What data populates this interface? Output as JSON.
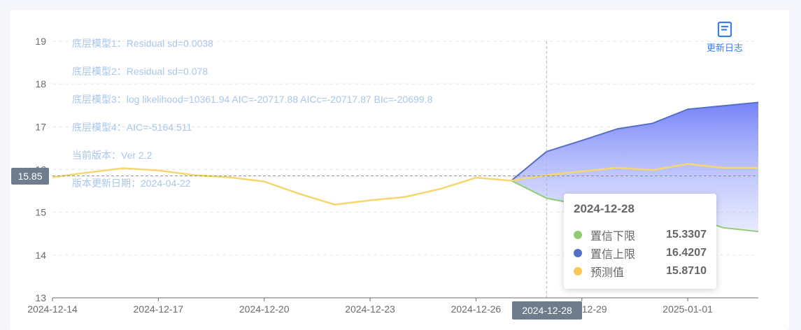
{
  "annotations": [
    "底层模型1：Residual sd=0.0038",
    "底层模型2：Residual sd=0.078",
    "底层模型3：log likelihood=10361.94 AIC=-20717.88 AICc=-20717.87 BIc=-20699.8",
    "底层模型4：AIC=-5164.511",
    "当前版本：Ver 2.2",
    "版本更新日期：2024-04-22"
  ],
  "changelog": {
    "label": "更新日志",
    "icon": "document-icon"
  },
  "crosshair": {
    "y_label": "15.85",
    "x_label": "2024-12-28"
  },
  "tooltip": {
    "title": "2024-12-28",
    "rows": [
      {
        "name": "置信下限",
        "value": "15.3307",
        "color": "#91cc75"
      },
      {
        "name": "置信上限",
        "value": "16.4207",
        "color": "#5470c6"
      },
      {
        "name": "预测值",
        "value": "15.8710",
        "color": "#fac858"
      }
    ]
  },
  "chart_data": {
    "type": "line",
    "x": [
      "2024-12-14",
      "2024-12-15",
      "2024-12-16",
      "2024-12-17",
      "2024-12-18",
      "2024-12-19",
      "2024-12-20",
      "2024-12-21",
      "2024-12-22",
      "2024-12-23",
      "2024-12-24",
      "2024-12-25",
      "2024-12-26",
      "2024-12-27",
      "2024-12-28",
      "2024-12-29",
      "2024-12-30",
      "2024-12-31",
      "2025-01-01",
      "2025-01-02",
      "2025-01-03"
    ],
    "x_tick_labels": [
      "2024-12-14",
      "2024-12-17",
      "2024-12-20",
      "2024-12-23",
      "2024-12-26",
      "2024-12-29",
      "2025-01-01"
    ],
    "ylim": [
      13,
      19
    ],
    "y_ticks": [
      13,
      14,
      15,
      16,
      17,
      18,
      19
    ],
    "grid": true,
    "series": [
      {
        "name": "预测值",
        "color": "#f5d76e",
        "values": [
          15.82,
          15.93,
          16.03,
          15.98,
          15.87,
          15.82,
          15.72,
          15.43,
          15.18,
          15.28,
          15.36,
          15.55,
          15.81,
          15.74,
          15.87,
          15.96,
          16.04,
          15.99,
          16.13,
          16.04,
          16.04
        ]
      },
      {
        "name": "置信上限",
        "color": "#5470c6",
        "values": [
          null,
          null,
          null,
          null,
          null,
          null,
          null,
          null,
          null,
          null,
          null,
          null,
          null,
          15.74,
          16.42,
          16.68,
          16.95,
          17.08,
          17.41,
          17.49,
          17.57
        ]
      },
      {
        "name": "置信下限",
        "color": "#91cc75",
        "values": [
          null,
          null,
          null,
          null,
          null,
          null,
          null,
          null,
          null,
          null,
          null,
          null,
          null,
          15.74,
          15.33,
          15.17,
          15.07,
          14.93,
          14.93,
          14.64,
          14.55
        ]
      }
    ],
    "crosshair_value": 15.85,
    "crosshair_x": "2024-12-28"
  }
}
